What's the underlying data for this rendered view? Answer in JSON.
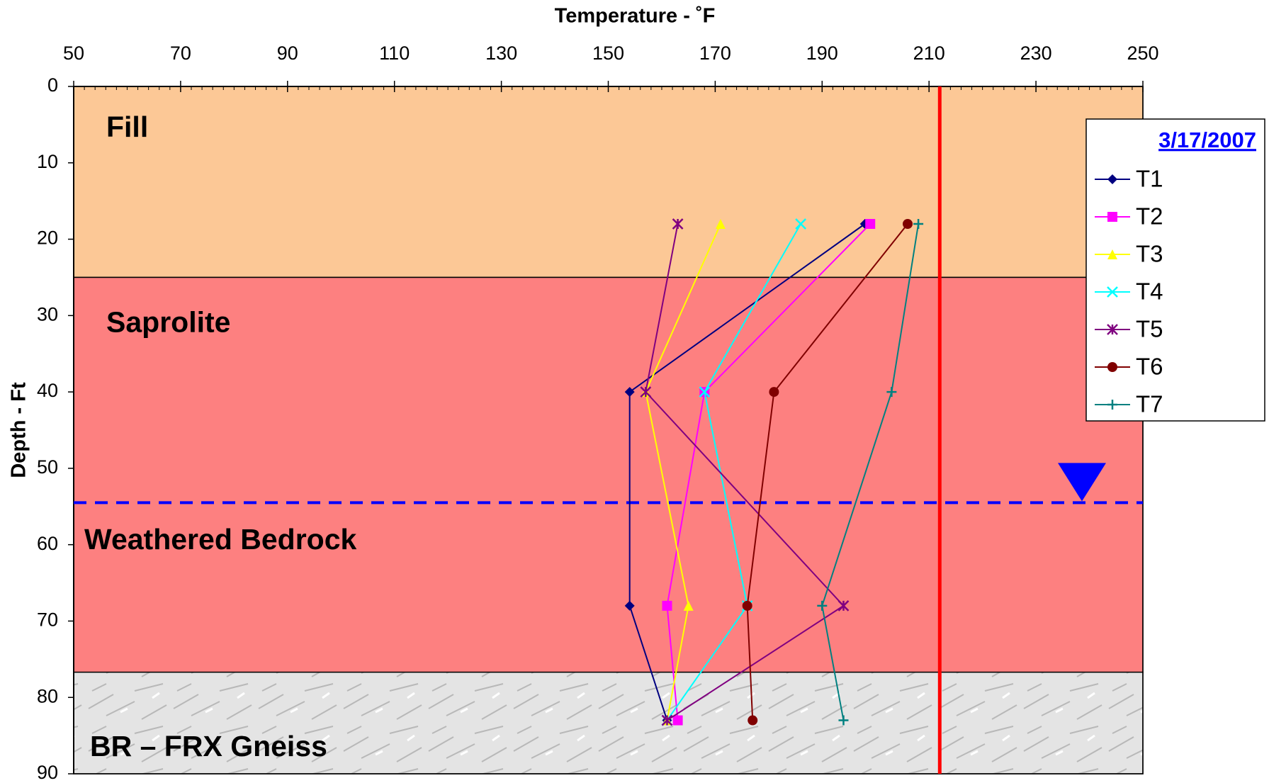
{
  "chart_data": {
    "type": "line",
    "title": "Temperature - ˚F",
    "y_label": "Depth - Ft",
    "xlim": [
      50,
      250
    ],
    "xticks": [
      50,
      70,
      90,
      110,
      130,
      150,
      170,
      190,
      210,
      230,
      250
    ],
    "ylim": [
      0,
      90
    ],
    "yticks": [
      0,
      10,
      20,
      30,
      40,
      50,
      60,
      70,
      80,
      90
    ],
    "y_inverted": true,
    "legend_title": "3/17/2007",
    "legend_position": "right",
    "depths": [
      18,
      40,
      68,
      83
    ],
    "series": [
      {
        "name": "T1",
        "color": "#000080",
        "marker": "diamond",
        "values": [
          198,
          154,
          154,
          161
        ]
      },
      {
        "name": "T2",
        "color": "#ff00ff",
        "marker": "square",
        "values": [
          199,
          168,
          161,
          163
        ]
      },
      {
        "name": "T3",
        "color": "#ffff00",
        "marker": "triangle",
        "values": [
          171,
          157,
          165,
          161
        ]
      },
      {
        "name": "T4",
        "color": "#00ffff",
        "marker": "x",
        "values": [
          186,
          168,
          176,
          161
        ]
      },
      {
        "name": "T5",
        "color": "#800080",
        "marker": "star",
        "values": [
          163,
          157,
          194,
          161
        ]
      },
      {
        "name": "T6",
        "color": "#800000",
        "marker": "circle",
        "values": [
          206,
          181,
          176,
          177
        ]
      },
      {
        "name": "T7",
        "color": "#008080",
        "marker": "plus",
        "values": [
          208,
          203,
          190,
          194
        ]
      }
    ],
    "layers": [
      {
        "name": "Fill",
        "top": 0,
        "bottom": 25,
        "color": "#fcc896"
      },
      {
        "name": "Saprolite",
        "top": 25,
        "bottom": 76.7,
        "color": "#fd8080"
      },
      {
        "name": "BR – FRX Gneiss",
        "top": 76.7,
        "bottom": 90,
        "color": "#dcdcdc"
      }
    ],
    "annotation": "Weathered Bedrock",
    "water_table": 54.5,
    "boiling_line": 212
  }
}
